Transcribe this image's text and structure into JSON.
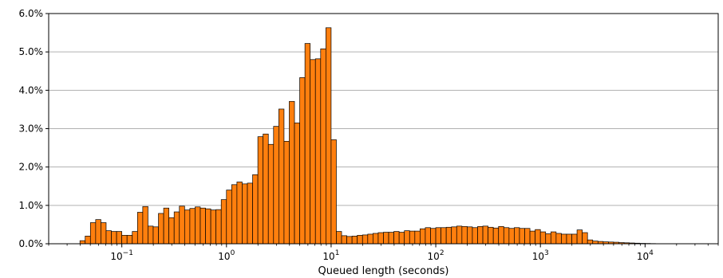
{
  "chart_data": {
    "type": "bar",
    "subtype": "histogram",
    "title": "",
    "xlabel": "Queued length (seconds)",
    "ylabel": "",
    "x_scale": "log",
    "xlim": [
      0.02,
      50000
    ],
    "ylim": [
      0,
      6.0
    ],
    "y_unit": "%",
    "grid": "horizontal",
    "bar_color": "#ff7f0e",
    "bar_edge_color": "#000000",
    "legend": "none",
    "x_ticks": [
      {
        "value": 0.1,
        "base": "10",
        "exp": "−1"
      },
      {
        "value": 1,
        "base": "10",
        "exp": "0"
      },
      {
        "value": 10,
        "base": "10",
        "exp": "1"
      },
      {
        "value": 100,
        "base": "10",
        "exp": "2"
      },
      {
        "value": 1000,
        "base": "10",
        "exp": "3"
      },
      {
        "value": 10000,
        "base": "10",
        "exp": "4"
      }
    ],
    "y_ticks": [
      {
        "value": 0.0,
        "label": "0.0%"
      },
      {
        "value": 1.0,
        "label": "1.0%"
      },
      {
        "value": 2.0,
        "label": "2.0%"
      },
      {
        "value": 3.0,
        "label": "3.0%"
      },
      {
        "value": 4.0,
        "label": "4.0%"
      },
      {
        "value": 5.0,
        "label": "5.0%"
      },
      {
        "value": 6.0,
        "label": "6.0%"
      }
    ],
    "bins": {
      "start": 0.0398,
      "bins_per_decade": 20,
      "values": [
        0.08,
        0.2,
        0.55,
        0.63,
        0.55,
        0.34,
        0.32,
        0.32,
        0.22,
        0.22,
        0.32,
        0.82,
        0.97,
        0.46,
        0.44,
        0.79,
        0.93,
        0.68,
        0.83,
        0.98,
        0.88,
        0.92,
        0.96,
        0.93,
        0.91,
        0.88,
        0.89,
        1.15,
        1.4,
        1.54,
        1.61,
        1.56,
        1.58,
        1.8,
        2.79,
        2.86,
        2.59,
        3.06,
        3.51,
        2.67,
        3.71,
        3.15,
        4.33,
        5.22,
        4.8,
        4.82,
        5.08,
        5.63,
        2.71,
        0.32,
        0.21,
        0.19,
        0.2,
        0.22,
        0.23,
        0.25,
        0.27,
        0.29,
        0.3,
        0.3,
        0.32,
        0.3,
        0.34,
        0.33,
        0.33,
        0.39,
        0.42,
        0.4,
        0.42,
        0.42,
        0.43,
        0.44,
        0.46,
        0.45,
        0.44,
        0.42,
        0.45,
        0.46,
        0.43,
        0.41,
        0.45,
        0.42,
        0.4,
        0.42,
        0.4,
        0.4,
        0.33,
        0.37,
        0.31,
        0.26,
        0.31,
        0.27,
        0.25,
        0.25,
        0.25,
        0.36,
        0.29,
        0.1,
        0.07,
        0.06,
        0.05,
        0.045,
        0.04,
        0.03,
        0.025,
        0.02,
        0.015,
        0.01,
        0.008,
        0.005
      ]
    }
  }
}
